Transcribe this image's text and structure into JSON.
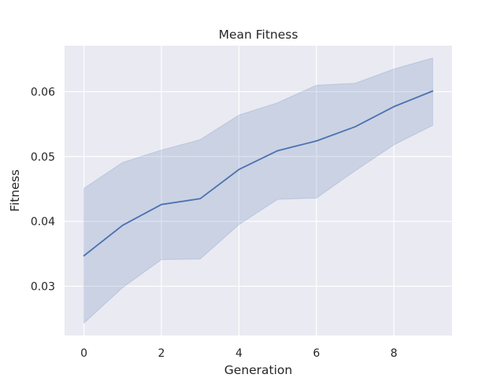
{
  "chart_data": {
    "type": "line",
    "title": "Mean Fitness",
    "xlabel": "Generation",
    "ylabel": "Fitness",
    "x": [
      0,
      1,
      2,
      3,
      4,
      5,
      6,
      7,
      8,
      9
    ],
    "series": [
      {
        "values": [
          0.0347,
          0.0394,
          0.0426,
          0.0435,
          0.048,
          0.0509,
          0.0524,
          0.0546,
          0.0577,
          0.0601
        ],
        "lower": [
          0.0243,
          0.0298,
          0.0341,
          0.0342,
          0.0395,
          0.0434,
          0.0436,
          0.0478,
          0.0518,
          0.0548
        ],
        "upper": [
          0.0451,
          0.0491,
          0.051,
          0.0526,
          0.0564,
          0.0583,
          0.061,
          0.0613,
          0.0635,
          0.0652
        ],
        "color": "#4c72b0"
      }
    ],
    "xlim": [
      -0.5,
      9.5
    ],
    "ylim": [
      0.0224,
      0.0671
    ],
    "xticks": [
      0,
      2,
      4,
      6,
      8
    ],
    "xtick_labels": [
      "0",
      "2",
      "4",
      "6",
      "8"
    ],
    "yticks": [
      0.03,
      0.04,
      0.05,
      0.06
    ],
    "ytick_labels": [
      "0.03",
      "0.04",
      "0.05",
      "0.06"
    ],
    "grid": true,
    "background": "#eaeaf2",
    "grid_color": "#ffffff"
  }
}
